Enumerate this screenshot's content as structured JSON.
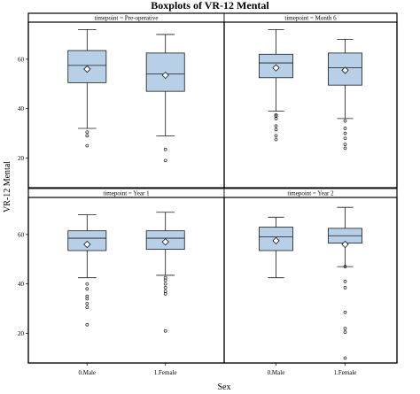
{
  "chart_data": {
    "type": "boxplot",
    "title": "Boxplots of VR-12 Mental",
    "xlabel": "Sex",
    "ylabel": "VR-12 Mental",
    "ylim": [
      8,
      75
    ],
    "yticks": [
      20,
      40,
      60
    ],
    "categories": [
      "0.Male",
      "1.Female"
    ],
    "panels": [
      {
        "label": "timepoint = Pre-operative",
        "boxes": [
          {
            "category": "0.Male",
            "whisker_low": 32,
            "q1": 50.5,
            "median": 57.5,
            "q3": 63.5,
            "whisker_high": 72,
            "mean": 56,
            "outliers": [
              25,
              29,
              30.5
            ]
          },
          {
            "category": "1.Female",
            "whisker_low": 29,
            "q1": 47,
            "median": 54,
            "q3": 62.5,
            "whisker_high": 70,
            "mean": 53.5,
            "outliers": [
              19,
              23.5
            ]
          }
        ]
      },
      {
        "label": "timepoint = Month 6",
        "boxes": [
          {
            "category": "0.Male",
            "whisker_low": 39,
            "q1": 52.5,
            "median": 58.5,
            "q3": 62,
            "whisker_high": 72,
            "mean": 56.5,
            "outliers": [
              27.5,
              29,
              31.5,
              33,
              36,
              37,
              37.5
            ]
          },
          {
            "category": "1.Female",
            "whisker_low": 36,
            "q1": 49.5,
            "median": 56.5,
            "q3": 62.5,
            "whisker_high": 68,
            "mean": 55.5,
            "outliers": [
              24,
              25.5,
              28,
              30,
              32,
              35
            ]
          }
        ]
      },
      {
        "label": "timepoint = Year 1",
        "boxes": [
          {
            "category": "0.Male",
            "whisker_low": 42.5,
            "q1": 53.5,
            "median": 58.5,
            "q3": 61.5,
            "whisker_high": 68,
            "mean": 56,
            "outliers": [
              23.5,
              30.5,
              32,
              34,
              35,
              38,
              40
            ]
          },
          {
            "category": "1.Female",
            "whisker_low": 43.5,
            "q1": 54,
            "median": 58.5,
            "q3": 61.5,
            "whisker_high": 69,
            "mean": 57,
            "outliers": [
              21,
              36,
              37,
              38.5,
              40,
              41.5,
              42.5
            ]
          }
        ]
      },
      {
        "label": "timepoint = Year 2",
        "boxes": [
          {
            "category": "0.Male",
            "whisker_low": 42.5,
            "q1": 53.5,
            "median": 59,
            "q3": 63,
            "whisker_high": 67,
            "mean": 57.5,
            "outliers": []
          },
          {
            "category": "1.Female",
            "whisker_low": 47,
            "q1": 56.5,
            "median": 59.5,
            "q3": 62.5,
            "whisker_high": 71,
            "mean": 56,
            "outliers": [
              10,
              20.5,
              22,
              28.5,
              38.5,
              41,
              47
            ]
          }
        ]
      }
    ],
    "grid": false,
    "legend": "none"
  }
}
